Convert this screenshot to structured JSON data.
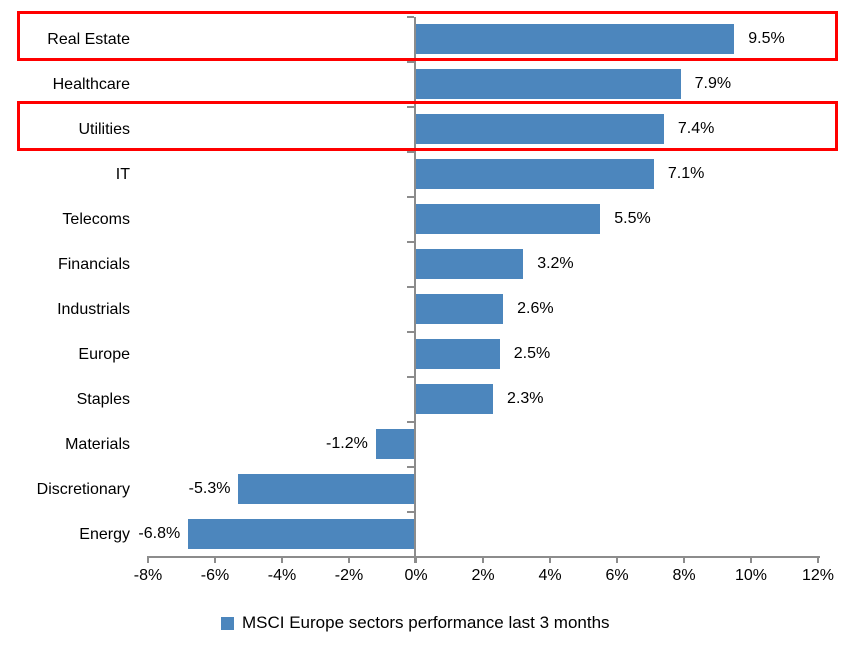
{
  "chart_data": {
    "type": "bar",
    "orientation": "horizontal",
    "categories": [
      "Real Estate",
      "Healthcare",
      "Utilities",
      "IT",
      "Telecoms",
      "Financials",
      "Industrials",
      "Europe",
      "Staples",
      "Materials",
      "Discretionary",
      "Energy"
    ],
    "values": [
      9.5,
      7.9,
      7.4,
      7.1,
      5.5,
      3.2,
      2.6,
      2.5,
      2.3,
      -1.2,
      -5.3,
      -6.8
    ],
    "value_labels": [
      "9.5%",
      "7.9%",
      "7.4%",
      "7.1%",
      "5.5%",
      "3.2%",
      "2.6%",
      "2.5%",
      "2.3%",
      "-1.2%",
      "-5.3%",
      "-6.8%"
    ],
    "x_ticks": [
      "-8%",
      "-6%",
      "-4%",
      "-2%",
      "0%",
      "2%",
      "4%",
      "6%",
      "8%",
      "10%",
      "12%"
    ],
    "xlim": [
      -8,
      12
    ],
    "tick_step_pct": 2,
    "grid": false,
    "bar_color": "#4c86bd",
    "axis_color": "#8c8c8c",
    "legend": {
      "label": "MSCI Europe sectors performance last 3 months",
      "marker_color": "#4c86bd",
      "position": "bottom-center"
    },
    "highlight": {
      "color": "#ff0000",
      "categories": [
        "Real Estate",
        "Utilities"
      ],
      "indices": [
        0,
        2
      ]
    }
  }
}
